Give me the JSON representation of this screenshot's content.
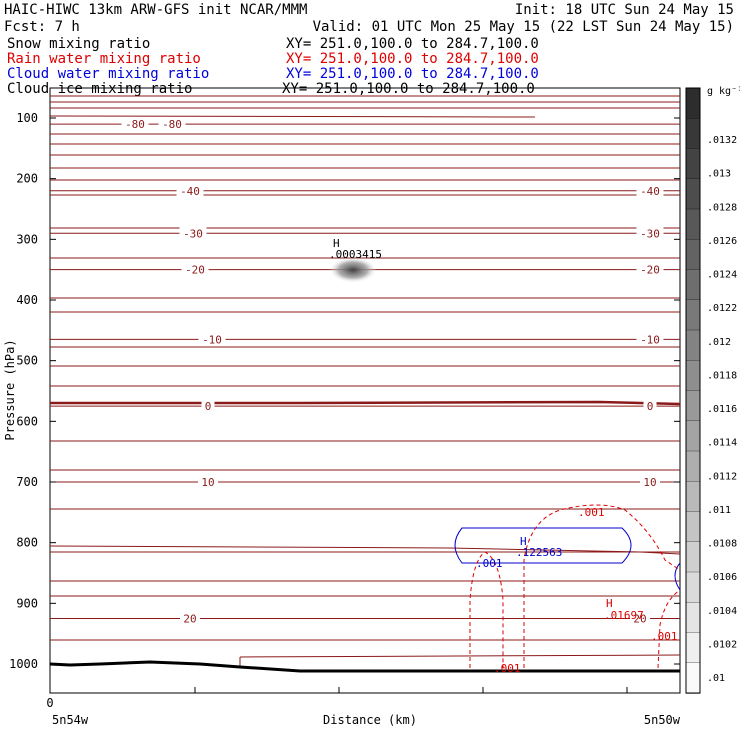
{
  "header": {
    "line1_left": "HAIC-HIWC 13km ARW-GFS init   NCAR/MMM",
    "line1_right": "Init: 18 UTC Sun 24 May 15",
    "line2_left": "Fcst:    7 h",
    "line2_right": "Valid: 01 UTC Mon 25 May 15 (22 LST Sun 24 May 15)",
    "fields": [
      {
        "name": "Snow mixing ratio",
        "xy": "XY= 251.0,100.0 to 284.7,100.0",
        "color": "#000000"
      },
      {
        "name": "Rain water mixing ratio",
        "xy": "XY= 251.0,100.0 to 284.7,100.0",
        "color": "#e00000"
      },
      {
        "name": "Cloud water mixing ratio",
        "xy": "XY= 251.0,100.0 to 284.7,100.0",
        "color": "#0000e0"
      },
      {
        "name": "Cloud ice mixing ratio",
        "xy": "XY= 251.0,100.0 to 284.7,100.0",
        "color": "#000000"
      }
    ]
  },
  "chart_data": {
    "type": "cross-section",
    "ylabel": "Pressure (hPa)",
    "xlabel": "Distance (km)",
    "x_start_label": "0",
    "x_left_label": "5n54w",
    "x_right_label": "5n50w",
    "y_ticks": [
      100,
      200,
      300,
      400,
      500,
      600,
      700,
      800,
      900,
      1000
    ],
    "ylim": [
      1050,
      50
    ],
    "colorbar": {
      "unit": "g kg⁻¹",
      "ticks": [
        ".0132",
        ".013",
        ".0128",
        ".0126",
        ".0124",
        ".0122",
        ".012",
        ".0118",
        ".0116",
        ".0114",
        ".0112",
        ".011",
        ".0108",
        ".0106",
        ".0104",
        ".0102",
        ".01"
      ]
    },
    "temperature_contours": [
      {
        "label": "-80",
        "pressure": 110
      },
      {
        "label": "-40",
        "pressure": 220
      },
      {
        "label": "-30",
        "pressure": 290
      },
      {
        "label": "-20",
        "pressure": 350
      },
      {
        "label": "-10",
        "pressure": 465
      },
      {
        "label": "0",
        "pressure": 575
      },
      {
        "label": "10",
        "pressure": 700
      },
      {
        "label": "20",
        "pressure": 925
      }
    ],
    "snow_max": {
      "marker": "H",
      "value": ".0003415",
      "x_frac": 0.455,
      "pressure": 345
    },
    "cloud_water_max": {
      "marker": "H",
      "value": ".122563",
      "x_frac": 0.75,
      "pressure": 800
    },
    "cloud_water_label": ".001",
    "rain_max": {
      "marker": "H",
      "value": ".01697",
      "x_frac": 0.9,
      "pressure": 905
    },
    "rain_labels": [
      ".001",
      ".001",
      ".001"
    ]
  }
}
